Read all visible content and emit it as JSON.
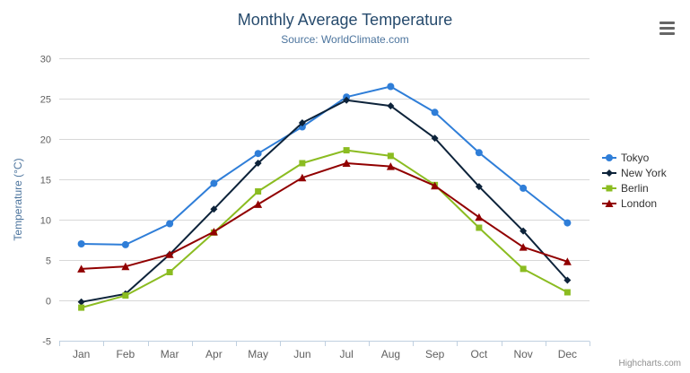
{
  "header": {
    "title": "Monthly Average Temperature",
    "subtitle": "Source: WorldClimate.com"
  },
  "credits": {
    "label": "Highcharts.com"
  },
  "icons": {
    "export_menu": "hamburger-menu-icon"
  },
  "chart_data": {
    "type": "line",
    "title": "Monthly Average Temperature",
    "subtitle": "Source: WorldClimate.com",
    "categories": [
      "Jan",
      "Feb",
      "Mar",
      "Apr",
      "May",
      "Jun",
      "Jul",
      "Aug",
      "Sep",
      "Oct",
      "Nov",
      "Dec"
    ],
    "xlabel": "",
    "ylabel": "Temperature (°C)",
    "ylim": [
      -5,
      30
    ],
    "ytick_interval": 5,
    "grid": true,
    "legend_position": "right",
    "style": {
      "grid_color": "#d8d8d8",
      "axis_line_color": "#c0d0e0",
      "label_color": "#606060",
      "axis_title_color": "#4d759e",
      "legend_text_color": "#333333",
      "title_color": "#274b6d",
      "subtitle_color": "#4d759e"
    },
    "series": [
      {
        "name": "Tokyo",
        "color": "#2f7ed8",
        "marker": "circle",
        "values": [
          7.0,
          6.9,
          9.5,
          14.5,
          18.2,
          21.5,
          25.2,
          26.5,
          23.3,
          18.3,
          13.9,
          9.6
        ]
      },
      {
        "name": "New York",
        "color": "#0d233a",
        "marker": "diamond",
        "values": [
          -0.2,
          0.8,
          5.7,
          11.3,
          17.0,
          22.0,
          24.8,
          24.1,
          20.1,
          14.1,
          8.6,
          2.5
        ]
      },
      {
        "name": "Berlin",
        "color": "#8bbc21",
        "marker": "square",
        "values": [
          -0.9,
          0.6,
          3.5,
          8.4,
          13.5,
          17.0,
          18.6,
          17.9,
          14.3,
          9.0,
          3.9,
          1.0
        ]
      },
      {
        "name": "London",
        "color": "#910000",
        "marker": "triangle",
        "values": [
          3.9,
          4.2,
          5.7,
          8.5,
          11.9,
          15.2,
          17.0,
          16.6,
          14.2,
          10.3,
          6.6,
          4.8
        ]
      }
    ]
  }
}
